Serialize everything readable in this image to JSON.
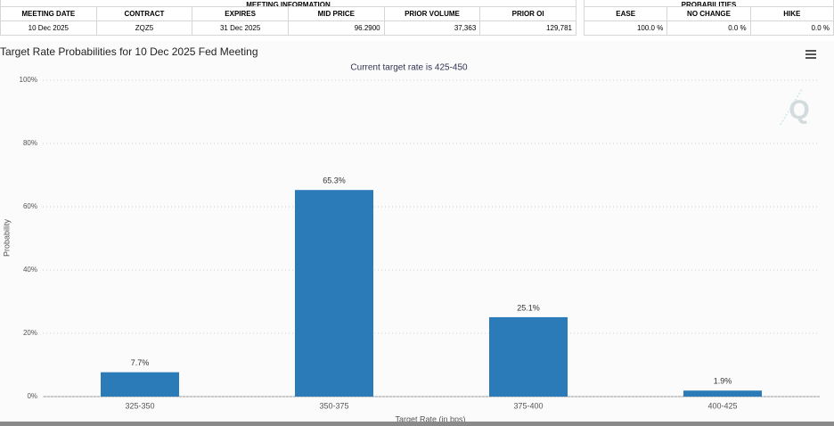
{
  "meeting_info": {
    "title": "MEETING INFORMATION",
    "headers": [
      "MEETING DATE",
      "CONTRACT",
      "EXPIRES",
      "MID PRICE",
      "PRIOR VOLUME",
      "PRIOR OI"
    ],
    "rows": [
      [
        "10 Dec 2025",
        "ZQZ5",
        "31 Dec 2025",
        "96.2900",
        "37,363",
        "129,781"
      ]
    ]
  },
  "probabilities": {
    "title": "PROBABILITIES",
    "headers": [
      "EASE",
      "NO CHANGE",
      "HIKE"
    ],
    "rows": [
      [
        "100.0 %",
        "0.0 %",
        "0.0 %"
      ]
    ]
  },
  "chart_data": {
    "type": "bar",
    "title": "Target Rate Probabilities for 10 Dec 2025 Fed Meeting",
    "subtitle": "Current target rate is 425-450",
    "x_label": "Target Rate (in bps)",
    "y_label": "Probability",
    "categories": [
      "325-350",
      "350-375",
      "375-400",
      "400-425"
    ],
    "values": [
      7.7,
      65.3,
      25.1,
      1.9
    ],
    "value_labels": [
      "7.7%",
      "65.3%",
      "25.1%",
      "1.9%"
    ],
    "color": "#2b7bb9",
    "ylim": [
      0,
      100
    ],
    "yticks": [
      {
        "value": 0,
        "label": "0%"
      },
      {
        "value": 20,
        "label": "20%"
      },
      {
        "value": 40,
        "label": "40%"
      },
      {
        "value": 60,
        "label": "60%"
      },
      {
        "value": 80,
        "label": "80%"
      },
      {
        "value": 100,
        "label": "100%"
      }
    ],
    "grid": true
  }
}
